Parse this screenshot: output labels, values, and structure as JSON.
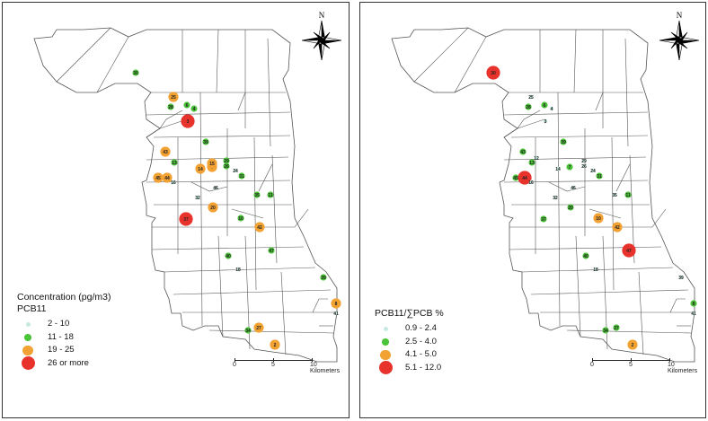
{
  "colors": {
    "class1": "#c6e9e2",
    "class2": "#4cc439",
    "class3": "#f2a233",
    "class4": "#e8332c",
    "boundary": "#555555"
  },
  "north_arrow_icon": "compass-rose-north-icon",
  "maps": [
    {
      "legend_title": "Concentration (pg/m3)",
      "legend_subtitle": "PCB11",
      "classes": [
        "2 - 10",
        "11 - 18",
        "19 - 25",
        "26 or more"
      ],
      "north_label": "N",
      "scale": {
        "ticks": [
          "0",
          "5",
          "10 Kilometers"
        ]
      },
      "sites": [
        {
          "id": "30",
          "class": 2
        },
        {
          "id": "25",
          "class": 3
        },
        {
          "id": "28",
          "class": 2
        },
        {
          "id": "6",
          "class": 2
        },
        {
          "id": "4",
          "class": 2
        },
        {
          "id": "3",
          "class": 4
        },
        {
          "id": "39",
          "class": 2
        },
        {
          "id": "43",
          "class": 3
        },
        {
          "id": "13",
          "class": 2
        },
        {
          "id": "14",
          "class": 3
        },
        {
          "id": "7",
          "class": 3
        },
        {
          "id": "15",
          "class": 3
        },
        {
          "id": "29",
          "class": 2
        },
        {
          "id": "26",
          "class": 2
        },
        {
          "id": "24",
          "class": 1
        },
        {
          "id": "31",
          "class": 2
        },
        {
          "id": "45",
          "class": 3
        },
        {
          "id": "44",
          "class": 3
        },
        {
          "id": "16",
          "class": 1
        },
        {
          "id": "46",
          "class": 1
        },
        {
          "id": "32",
          "class": 1
        },
        {
          "id": "35",
          "class": 2
        },
        {
          "id": "11",
          "class": 2
        },
        {
          "id": "20",
          "class": 3
        },
        {
          "id": "37",
          "class": 4
        },
        {
          "id": "10",
          "class": 2
        },
        {
          "id": "42",
          "class": 3
        },
        {
          "id": "47",
          "class": 2
        },
        {
          "id": "40",
          "class": 2
        },
        {
          "id": "18",
          "class": 1
        },
        {
          "id": "39b",
          "label": "39",
          "class": 2
        },
        {
          "id": "8",
          "class": 3
        },
        {
          "id": "41",
          "class": 1
        },
        {
          "id": "34",
          "class": 2
        },
        {
          "id": "27",
          "class": 3
        },
        {
          "id": "2",
          "class": 3
        }
      ]
    },
    {
      "legend_title": "PCB11/∑PCB %",
      "classes": [
        "0.9 - 2.4",
        "2.5 - 4.0",
        "4.1 - 5.0",
        "5.1 - 12.0"
      ],
      "north_label": "N",
      "scale": {
        "ticks": [
          "0",
          "5",
          "10 Kilometers"
        ]
      },
      "sites": [
        {
          "id": "30",
          "class": 4
        },
        {
          "id": "25",
          "class": 1
        },
        {
          "id": "28",
          "class": 2
        },
        {
          "id": "6",
          "class": 2
        },
        {
          "id": "4",
          "class": 1
        },
        {
          "id": "3",
          "class": 1
        },
        {
          "id": "39",
          "class": 2
        },
        {
          "id": "43",
          "class": 2
        },
        {
          "id": "12",
          "class": 1
        },
        {
          "id": "13",
          "class": 2
        },
        {
          "id": "7",
          "class": 2
        },
        {
          "id": "29",
          "class": 1
        },
        {
          "id": "26",
          "class": 1
        },
        {
          "id": "24",
          "class": 1
        },
        {
          "id": "14",
          "class": 1
        },
        {
          "id": "31",
          "class": 2
        },
        {
          "id": "45",
          "class": 2
        },
        {
          "id": "44",
          "class": 4
        },
        {
          "id": "16",
          "class": 1
        },
        {
          "id": "46",
          "class": 1
        },
        {
          "id": "32",
          "class": 1
        },
        {
          "id": "35",
          "class": 1
        },
        {
          "id": "11",
          "class": 2
        },
        {
          "id": "20",
          "class": 2
        },
        {
          "id": "37",
          "class": 2
        },
        {
          "id": "10",
          "class": 3
        },
        {
          "id": "42",
          "class": 3
        },
        {
          "id": "47",
          "class": 4
        },
        {
          "id": "40",
          "class": 2
        },
        {
          "id": "18",
          "class": 1
        },
        {
          "id": "39b",
          "label": "39",
          "class": 1
        },
        {
          "id": "8",
          "class": 2
        },
        {
          "id": "41",
          "class": 1
        },
        {
          "id": "34",
          "class": 2
        },
        {
          "id": "27",
          "class": 2
        },
        {
          "id": "2",
          "class": 3
        }
      ]
    }
  ]
}
